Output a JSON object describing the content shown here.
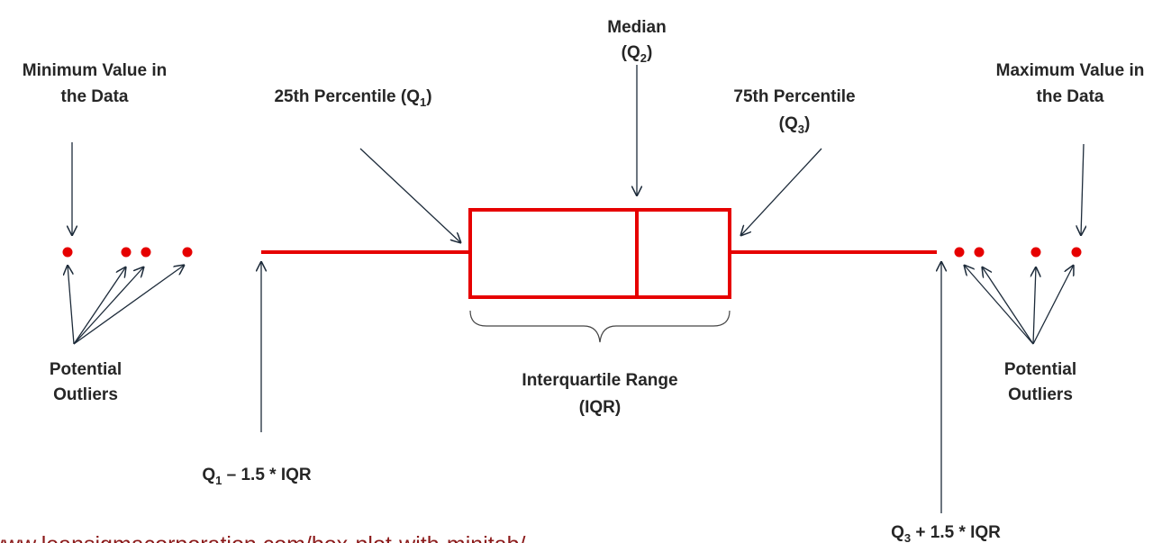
{
  "labels": {
    "minimum": [
      "Minimum Value in",
      "the Data"
    ],
    "q1": [
      "25th Percentile (Q",
      "1",
      ")"
    ],
    "median": {
      "line1": "Median",
      "line2": [
        "(Q",
        "2",
        ")"
      ]
    },
    "q3": {
      "line1": "75th Percentile",
      "line2": [
        "(Q",
        "3",
        ")"
      ]
    },
    "maximum": [
      "Maximum Value in",
      "the Data"
    ],
    "outliers_left": [
      "Potential",
      "Outliers"
    ],
    "outliers_right": [
      "Potential",
      "Outliers"
    ],
    "iqr": [
      "Interquartile Range",
      "(IQR)"
    ],
    "lower_fence": [
      "Q",
      "1",
      " – 1.5 * IQR"
    ],
    "upper_fence": [
      "Q",
      "3",
      " + 1.5 * IQR"
    ]
  },
  "source_url": "www.leansigmacorporation.com/box-plot-with-minitab/"
}
